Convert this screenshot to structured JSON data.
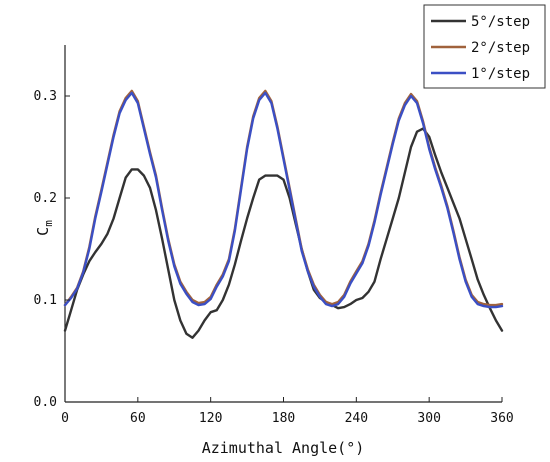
{
  "chart_data": {
    "type": "line",
    "xlabel": "Azimuthal Angle(°)",
    "ylabel_main": "C",
    "ylabel_sub": "m",
    "xlim": [
      0,
      360
    ],
    "ylim": [
      0,
      0.35
    ],
    "xticks": [
      0,
      60,
      120,
      180,
      240,
      300,
      360
    ],
    "xtick_labels": [
      "0",
      "60",
      "120",
      "180",
      "240",
      "300",
      "360"
    ],
    "yticks": [
      0,
      0.1,
      0.2,
      0.3
    ],
    "ytick_labels": [
      "0.0",
      "0.1",
      "0.2",
      "0.3"
    ],
    "grid": false,
    "legend_position": "top-right",
    "series": [
      {
        "name": "5°/step",
        "color": "#333333",
        "x": [
          0,
          5,
          10,
          15,
          20,
          25,
          30,
          35,
          40,
          45,
          50,
          55,
          60,
          65,
          70,
          75,
          80,
          85,
          90,
          95,
          100,
          105,
          110,
          115,
          120,
          125,
          130,
          135,
          140,
          145,
          150,
          155,
          160,
          165,
          170,
          175,
          180,
          185,
          190,
          195,
          200,
          205,
          210,
          215,
          220,
          225,
          230,
          235,
          240,
          245,
          250,
          255,
          260,
          265,
          270,
          275,
          280,
          285,
          290,
          295,
          300,
          305,
          310,
          315,
          320,
          325,
          330,
          335,
          340,
          345,
          350,
          355,
          360
        ],
        "y": [
          0.07,
          0.09,
          0.11,
          0.125,
          0.138,
          0.147,
          0.155,
          0.165,
          0.18,
          0.2,
          0.22,
          0.228,
          0.228,
          0.222,
          0.21,
          0.188,
          0.16,
          0.13,
          0.1,
          0.08,
          0.067,
          0.063,
          0.07,
          0.08,
          0.088,
          0.09,
          0.1,
          0.115,
          0.135,
          0.158,
          0.18,
          0.2,
          0.218,
          0.222,
          0.222,
          0.222,
          0.218,
          0.2,
          0.175,
          0.15,
          0.128,
          0.11,
          0.102,
          0.098,
          0.095,
          0.092,
          0.093,
          0.096,
          0.1,
          0.102,
          0.108,
          0.118,
          0.14,
          0.16,
          0.18,
          0.2,
          0.225,
          0.25,
          0.265,
          0.268,
          0.26,
          0.242,
          0.225,
          0.21,
          0.195,
          0.18,
          0.16,
          0.14,
          0.12,
          0.105,
          0.092,
          0.08,
          0.07
        ]
      },
      {
        "name": "2°/step",
        "color": "#a0623c",
        "x": [
          0,
          5,
          10,
          15,
          20,
          25,
          30,
          35,
          40,
          45,
          50,
          55,
          60,
          65,
          70,
          75,
          80,
          85,
          90,
          95,
          100,
          105,
          110,
          115,
          120,
          125,
          130,
          135,
          140,
          145,
          150,
          155,
          160,
          165,
          170,
          175,
          180,
          185,
          190,
          195,
          200,
          205,
          210,
          215,
          220,
          225,
          230,
          235,
          240,
          245,
          250,
          255,
          260,
          265,
          270,
          275,
          280,
          285,
          290,
          295,
          300,
          305,
          310,
          315,
          320,
          325,
          330,
          335,
          340,
          345,
          350,
          355,
          360
        ],
        "y": [
          0.095,
          0.103,
          0.112,
          0.128,
          0.152,
          0.182,
          0.208,
          0.235,
          0.262,
          0.285,
          0.298,
          0.305,
          0.295,
          0.27,
          0.245,
          0.222,
          0.19,
          0.16,
          0.135,
          0.118,
          0.108,
          0.1,
          0.097,
          0.098,
          0.103,
          0.115,
          0.125,
          0.14,
          0.17,
          0.21,
          0.25,
          0.28,
          0.298,
          0.305,
          0.295,
          0.27,
          0.24,
          0.21,
          0.18,
          0.15,
          0.13,
          0.115,
          0.105,
          0.098,
          0.096,
          0.098,
          0.105,
          0.118,
          0.128,
          0.138,
          0.155,
          0.178,
          0.205,
          0.23,
          0.255,
          0.278,
          0.293,
          0.302,
          0.295,
          0.275,
          0.25,
          0.23,
          0.212,
          0.192,
          0.168,
          0.142,
          0.12,
          0.105,
          0.098,
          0.096,
          0.095,
          0.095,
          0.096
        ]
      },
      {
        "name": "1°/step",
        "color": "#3b4fc4",
        "x": [
          0,
          5,
          10,
          15,
          20,
          25,
          30,
          35,
          40,
          45,
          50,
          55,
          60,
          65,
          70,
          75,
          80,
          85,
          90,
          95,
          100,
          105,
          110,
          115,
          120,
          125,
          130,
          135,
          140,
          145,
          150,
          155,
          160,
          165,
          170,
          175,
          180,
          185,
          190,
          195,
          200,
          205,
          210,
          215,
          220,
          225,
          230,
          235,
          240,
          245,
          250,
          255,
          260,
          265,
          270,
          275,
          280,
          285,
          290,
          295,
          300,
          305,
          310,
          315,
          320,
          325,
          330,
          335,
          340,
          345,
          350,
          355,
          360
        ],
        "y": [
          0.095,
          0.102,
          0.111,
          0.127,
          0.15,
          0.18,
          0.206,
          0.233,
          0.26,
          0.283,
          0.296,
          0.303,
          0.293,
          0.268,
          0.243,
          0.22,
          0.188,
          0.158,
          0.133,
          0.116,
          0.106,
          0.098,
          0.095,
          0.096,
          0.101,
          0.113,
          0.123,
          0.138,
          0.168,
          0.208,
          0.248,
          0.278,
          0.296,
          0.303,
          0.293,
          0.268,
          0.238,
          0.208,
          0.178,
          0.148,
          0.128,
          0.113,
          0.103,
          0.096,
          0.094,
          0.096,
          0.103,
          0.116,
          0.126,
          0.136,
          0.153,
          0.176,
          0.203,
          0.228,
          0.253,
          0.276,
          0.291,
          0.3,
          0.293,
          0.273,
          0.248,
          0.228,
          0.21,
          0.19,
          0.166,
          0.14,
          0.118,
          0.103,
          0.096,
          0.094,
          0.093,
          0.093,
          0.094
        ]
      }
    ]
  }
}
